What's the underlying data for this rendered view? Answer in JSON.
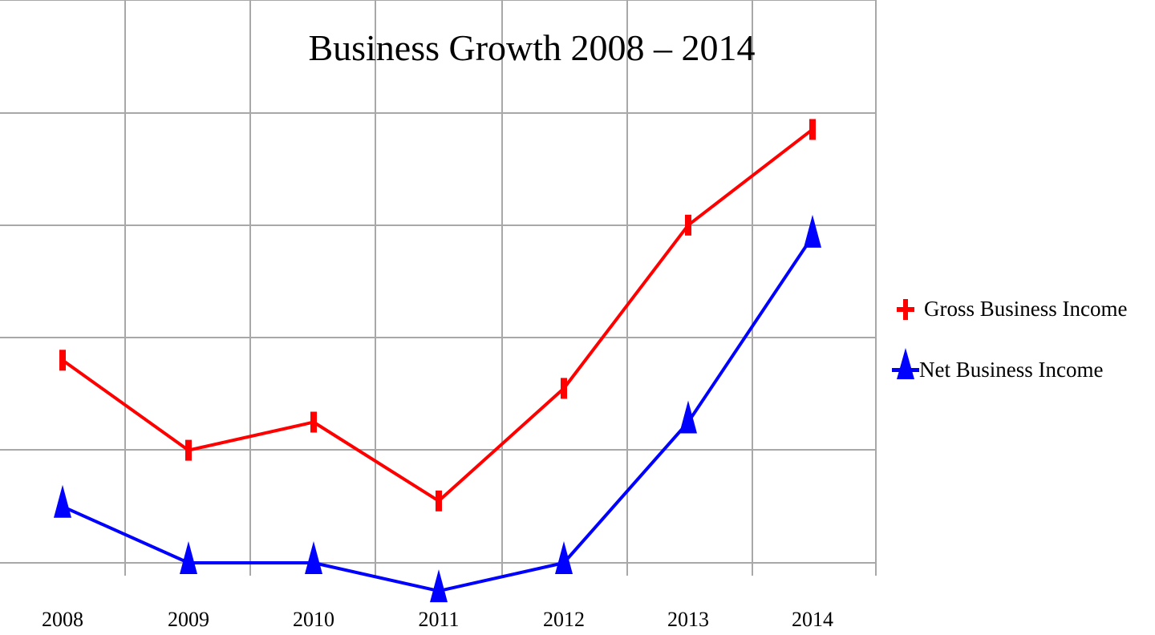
{
  "chart_data": {
    "type": "line",
    "title": "Business Growth 2008 – 2014",
    "xlabel": "",
    "ylabel": "",
    "categories": [
      "2008",
      "2009",
      "2010",
      "2011",
      "2012",
      "2013",
      "2014"
    ],
    "ylim": [
      0,
      5
    ],
    "grid": true,
    "y_tick_labels_shown": false,
    "legend_position": "right",
    "series": [
      {
        "name": "Gross Business Income",
        "marker": "tick",
        "color": "#ff0000",
        "values": [
          1.8,
          1.0,
          1.25,
          0.55,
          1.55,
          3.0,
          3.85
        ]
      },
      {
        "name": "Net Business Income",
        "marker": "triangle",
        "color": "#0000ff",
        "values": [
          0.5,
          0.0,
          0.0,
          -0.25,
          0.0,
          1.25,
          2.9
        ]
      }
    ]
  }
}
